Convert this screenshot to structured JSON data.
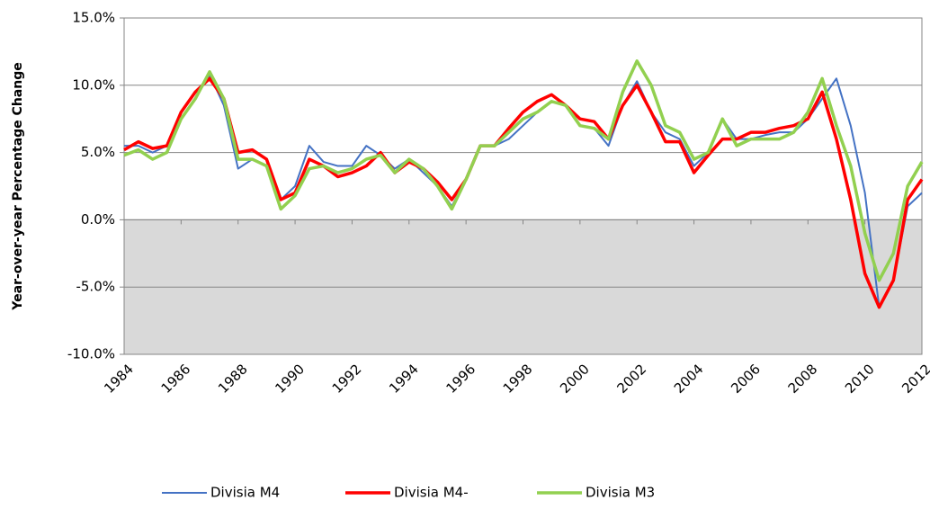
{
  "chart_data": {
    "type": "line",
    "y_label": "Year-over-year Percentage Change",
    "x": [
      1984,
      1984.5,
      1985,
      1985.5,
      1986,
      1986.5,
      1987,
      1987.5,
      1988,
      1988.5,
      1989,
      1989.5,
      1990,
      1990.5,
      1991,
      1991.5,
      1992,
      1992.5,
      1993,
      1993.5,
      1994,
      1994.5,
      1995,
      1995.5,
      1996,
      1996.5,
      1997,
      1997.5,
      1998,
      1998.5,
      1999,
      1999.5,
      2000,
      2000.5,
      2001,
      2001.5,
      2002,
      2002.5,
      2003,
      2003.5,
      2004,
      2004.5,
      2005,
      2005.5,
      2006,
      2006.5,
      2007,
      2007.5,
      2008,
      2008.5,
      2009,
      2009.5,
      2010,
      2010.5,
      2011,
      2011.5,
      2012
    ],
    "series": [
      {
        "name": "Divisia M4",
        "color": "#4472c4",
        "values": [
          5.5,
          5.5,
          5.0,
          5.5,
          7.5,
          9.0,
          10.8,
          8.5,
          3.8,
          4.5,
          4.0,
          1.5,
          2.5,
          5.5,
          4.3,
          4.0,
          4.0,
          5.5,
          4.8,
          3.8,
          4.5,
          3.5,
          2.5,
          1.0,
          3.0,
          5.5,
          5.5,
          6.0,
          7.0,
          8.0,
          8.8,
          8.5,
          7.0,
          6.8,
          5.5,
          8.5,
          10.3,
          8.0,
          6.5,
          6.0,
          4.0,
          5.0,
          7.5,
          6.0,
          6.0,
          6.3,
          6.5,
          6.5,
          7.5,
          9.0,
          10.5,
          7.0,
          2.0,
          -6.5,
          -4.5,
          1.0,
          2.0
        ]
      },
      {
        "name": "Divisia M4-",
        "color": "#ff0000",
        "values": [
          5.2,
          5.8,
          5.3,
          5.5,
          8.0,
          9.5,
          10.5,
          9.0,
          5.0,
          5.2,
          4.5,
          1.5,
          2.0,
          4.5,
          4.0,
          3.2,
          3.5,
          4.0,
          5.0,
          3.5,
          4.3,
          3.8,
          2.8,
          1.5,
          3.0,
          5.5,
          5.5,
          6.8,
          8.0,
          8.8,
          9.3,
          8.5,
          7.5,
          7.3,
          6.0,
          8.5,
          10.0,
          8.0,
          5.8,
          5.8,
          3.5,
          4.8,
          6.0,
          6.0,
          6.5,
          6.5,
          6.8,
          7.0,
          7.5,
          9.5,
          6.0,
          1.5,
          -4.0,
          -6.5,
          -4.5,
          1.5,
          3.0
        ]
      },
      {
        "name": "Divisia M3",
        "color": "#92d050",
        "values": [
          4.8,
          5.2,
          4.5,
          5.0,
          7.5,
          9.0,
          11.0,
          9.0,
          4.5,
          4.5,
          4.0,
          0.8,
          1.8,
          3.8,
          4.0,
          3.5,
          3.8,
          4.5,
          4.8,
          3.5,
          4.5,
          3.8,
          2.5,
          0.8,
          3.0,
          5.5,
          5.5,
          6.5,
          7.5,
          8.0,
          8.8,
          8.5,
          7.0,
          6.8,
          6.0,
          9.5,
          11.8,
          10.0,
          7.0,
          6.5,
          4.5,
          5.0,
          7.5,
          5.5,
          6.0,
          6.0,
          6.0,
          6.5,
          8.0,
          10.5,
          7.0,
          4.0,
          -1.0,
          -4.5,
          -2.5,
          2.5,
          4.3
        ]
      }
    ],
    "xlim": [
      1984,
      2012
    ],
    "xticks": [
      1984,
      1986,
      1988,
      1990,
      1992,
      1994,
      1996,
      1998,
      2000,
      2002,
      2004,
      2006,
      2008,
      2010,
      2012
    ],
    "ylim": [
      -10,
      15
    ],
    "yticks": [
      {
        "value": -10,
        "label": "-10.0%"
      },
      {
        "value": -5,
        "label": "-5.0%"
      },
      {
        "value": 0,
        "label": "0.0%"
      },
      {
        "value": 5,
        "label": "5.0%"
      },
      {
        "value": 10,
        "label": "10.0%"
      },
      {
        "value": 15,
        "label": "15.0%"
      }
    ],
    "grid": true,
    "negative_region_color": "#d9d9d9",
    "legend": "bottom"
  }
}
